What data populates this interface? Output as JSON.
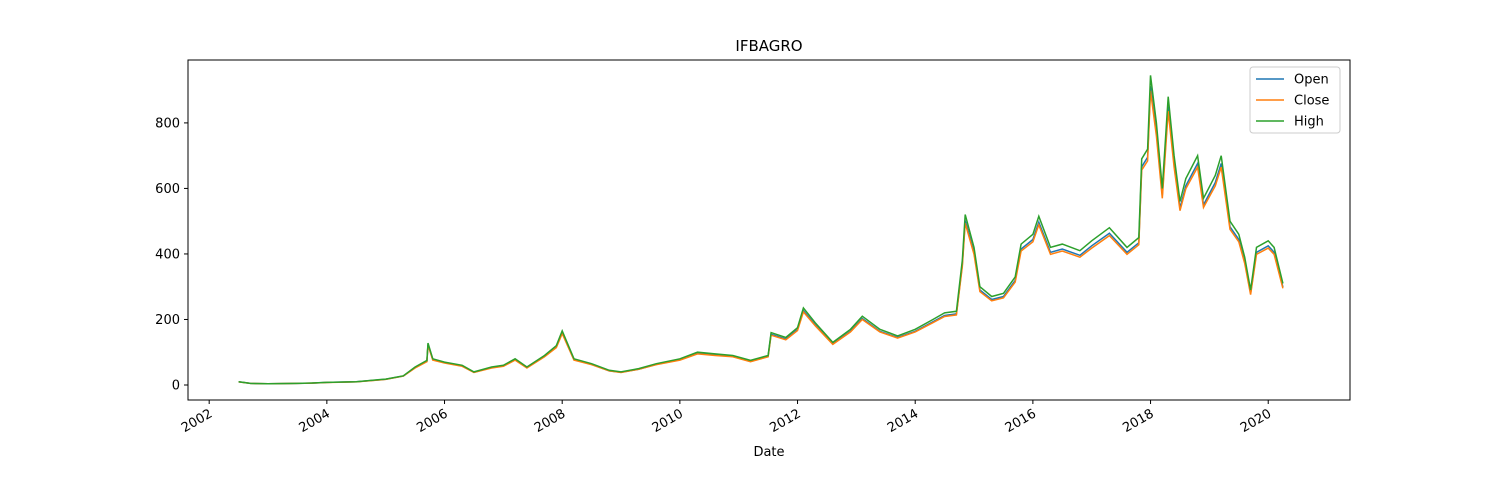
{
  "chart_data": {
    "type": "line",
    "title": "IFBAGRO",
    "x_label": "Date",
    "x": [
      2002.5,
      2002.7,
      2003.0,
      2003.5,
      2003.75,
      2004.0,
      2004.5,
      2005.0,
      2005.3,
      2005.5,
      2005.7,
      2005.72,
      2005.8,
      2006.0,
      2006.3,
      2006.5,
      2006.8,
      2007.0,
      2007.2,
      2007.4,
      2007.7,
      2007.9,
      2008.0,
      2008.2,
      2008.5,
      2008.8,
      2009.0,
      2009.3,
      2009.6,
      2010.0,
      2010.3,
      2010.6,
      2010.9,
      2011.2,
      2011.5,
      2011.55,
      2011.8,
      2012.0,
      2012.1,
      2012.3,
      2012.6,
      2012.9,
      2013.1,
      2013.4,
      2013.7,
      2014.0,
      2014.3,
      2014.5,
      2014.7,
      2014.8,
      2014.85,
      2015.0,
      2015.1,
      2015.3,
      2015.5,
      2015.7,
      2015.8,
      2016.0,
      2016.1,
      2016.3,
      2016.5,
      2016.8,
      2017.0,
      2017.3,
      2017.6,
      2017.8,
      2017.85,
      2017.95,
      2018.0,
      2018.1,
      2018.2,
      2018.3,
      2018.4,
      2018.5,
      2018.6,
      2018.8,
      2018.9,
      2019.1,
      2019.2,
      2019.35,
      2019.5,
      2019.6,
      2019.7,
      2019.8,
      2020.0,
      2020.1,
      2020.25
    ],
    "series": [
      {
        "name": "Open",
        "color": "#1f77b4",
        "values": [
          9.7,
          4.9,
          3.9,
          4.9,
          5.8,
          7.8,
          9.7,
          17.5,
          27,
          53,
          72,
          124,
          77,
          68,
          58,
          39,
          53,
          58,
          77,
          53,
          87,
          116,
          160,
          77,
          63,
          43,
          39,
          48,
          63,
          77,
          97,
          92,
          87,
          72,
          87,
          155,
          140,
          169,
          227,
          184,
          126,
          164,
          203,
          164,
          145,
          164,
          193,
          212,
          217,
          367,
          502,
          405,
          290,
          261,
          270,
          319,
          415,
          444,
          497,
          405,
          415,
          396,
          425,
          463,
          405,
          434,
          666,
          695,
          912,
          772,
          579,
          850,
          676,
          540,
          608,
          676,
          550,
          618,
          676,
          483,
          444,
          377,
          280,
          405,
          425,
          405,
          299
        ]
      },
      {
        "name": "Close",
        "color": "#ff7f0e",
        "values": [
          9.5,
          4.8,
          3.8,
          4.8,
          5.7,
          7.6,
          9.5,
          17,
          27,
          52,
          71,
          122,
          76,
          67,
          57,
          38,
          52,
          57,
          76,
          52,
          86,
          114,
          157,
          76,
          62,
          43,
          38,
          48,
          62,
          76,
          95,
          90,
          86,
          71,
          86,
          152,
          138,
          166,
          223,
          181,
          124,
          162,
          200,
          162,
          143,
          162,
          190,
          209,
          214,
          361,
          494,
          399,
          285,
          257,
          266,
          314,
          409,
          437,
          489,
          399,
          409,
          390,
          418,
          456,
          399,
          428,
          656,
          684,
          898,
          760,
          570,
          836,
          665,
          532,
          599,
          665,
          542,
          608,
          665,
          475,
          437,
          371,
          276,
          399,
          418,
          399,
          295
        ]
      },
      {
        "name": "High",
        "color": "#2ca02c",
        "values": [
          10,
          5,
          4,
          5,
          6,
          8,
          10,
          18,
          28,
          55,
          75,
          128,
          80,
          70,
          60,
          40,
          55,
          60,
          80,
          55,
          90,
          120,
          165,
          80,
          65,
          45,
          40,
          50,
          65,
          80,
          100,
          95,
          90,
          75,
          90,
          160,
          145,
          175,
          235,
          190,
          130,
          170,
          210,
          170,
          150,
          170,
          200,
          220,
          225,
          380,
          520,
          420,
          300,
          270,
          280,
          330,
          430,
          460,
          515,
          420,
          430,
          410,
          440,
          480,
          420,
          450,
          690,
          720,
          945,
          800,
          600,
          880,
          700,
          560,
          630,
          700,
          570,
          640,
          700,
          500,
          460,
          390,
          290,
          420,
          440,
          420,
          310
        ]
      }
    ],
    "xlim": [
      2001.64,
      2021.39
    ],
    "xticks": [
      2002,
      2004,
      2006,
      2008,
      2010,
      2012,
      2014,
      2016,
      2018,
      2020
    ],
    "ylim": [
      -45.8,
      992
    ],
    "yticks": [
      0,
      200,
      400,
      600,
      800
    ],
    "legend": "upper right"
  }
}
